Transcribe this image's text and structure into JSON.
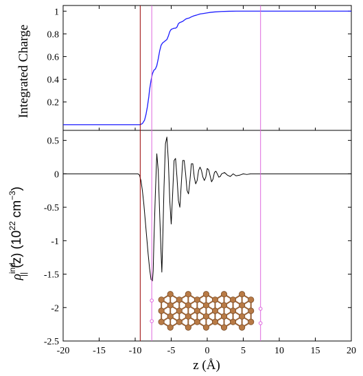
{
  "chart_data": [
    {
      "type": "line",
      "panel": "top",
      "ylabel": "Integrated Charge",
      "xlim": [
        -20,
        20
      ],
      "ylim": [
        -0.05,
        1.05
      ],
      "yticks": [
        0.2,
        0.4,
        0.6,
        0.8,
        1
      ],
      "ytick_labels": [
        "0.2",
        "0.4",
        "0.6",
        "0.8",
        "1"
      ],
      "series": [
        {
          "color": "#1a1aff",
          "x": [
            -20,
            -9.3,
            -9.0,
            -8.7,
            -8.5,
            -8.3,
            -8.1,
            -8.0,
            -7.8,
            -7.6,
            -7.4,
            -7.2,
            -7.0,
            -6.8,
            -6.6,
            -6.4,
            -6.2,
            -6.0,
            -5.8,
            -5.6,
            -5.4,
            -5.2,
            -5.0,
            -4.8,
            -4.6,
            -4.4,
            -4.2,
            -4.0,
            -3.8,
            -3.6,
            -3.4,
            -3.2,
            -3.0,
            -2.8,
            -2.5,
            -2.2,
            -1.8,
            -1.5,
            -1.0,
            -0.5,
            0,
            0.5,
            1.0,
            2.0,
            3.0,
            4.0,
            5.0,
            7.0,
            10.0,
            20.0
          ],
          "y": [
            0,
            0,
            0.01,
            0.04,
            0.09,
            0.16,
            0.25,
            0.31,
            0.39,
            0.45,
            0.48,
            0.49,
            0.52,
            0.58,
            0.65,
            0.7,
            0.72,
            0.73,
            0.74,
            0.75,
            0.78,
            0.82,
            0.84,
            0.845,
            0.85,
            0.85,
            0.86,
            0.89,
            0.9,
            0.905,
            0.91,
            0.92,
            0.93,
            0.935,
            0.94,
            0.95,
            0.96,
            0.965,
            0.975,
            0.98,
            0.985,
            0.99,
            0.993,
            0.997,
            0.999,
            1.0,
            1.0,
            1.0,
            1.0,
            1.0
          ]
        }
      ]
    },
    {
      "type": "line",
      "panel": "bottom",
      "xlabel": "z (Å)",
      "ylabel": "ρ||ind(z) (10²² cm⁻³)",
      "xlim": [
        -20,
        20
      ],
      "ylim": [
        -2.5,
        0.65
      ],
      "xticks": [
        -20,
        -15,
        -10,
        -5,
        0,
        5,
        10,
        15,
        20
      ],
      "xtick_labels": [
        "-20",
        "-15",
        "-10",
        "-5",
        "0",
        "5",
        "10",
        "15",
        "20"
      ],
      "yticks": [
        0.5,
        0,
        -0.5,
        -1,
        -1.5,
        -2,
        -2.5
      ],
      "ytick_labels": [
        "0.5",
        "0",
        "-0.5",
        "-1",
        "-1.5",
        "-2",
        "-2.5"
      ],
      "series": [
        {
          "color": "#000000",
          "x": [
            -20,
            -9.6,
            -9.4,
            -9.2,
            -9.0,
            -8.8,
            -8.6,
            -8.4,
            -8.2,
            -8.0,
            -7.8,
            -7.6,
            -7.5,
            -7.4,
            -7.2,
            -7.0,
            -6.8,
            -6.6,
            -6.4,
            -6.3,
            -6.2,
            -6.0,
            -5.8,
            -5.6,
            -5.4,
            -5.2,
            -5.0,
            -4.8,
            -4.6,
            -4.4,
            -4.2,
            -4.0,
            -3.8,
            -3.6,
            -3.4,
            -3.2,
            -3.0,
            -2.8,
            -2.6,
            -2.4,
            -2.2,
            -2.0,
            -1.8,
            -1.6,
            -1.4,
            -1.2,
            -1.0,
            -0.8,
            -0.6,
            -0.4,
            -0.2,
            0,
            0.2,
            0.4,
            0.6,
            0.8,
            1.0,
            1.2,
            1.4,
            1.6,
            1.8,
            2.0,
            2.4,
            2.8,
            3.2,
            3.6,
            4.0,
            4.5,
            5.0,
            5.5,
            6.0,
            7.0,
            20.0
          ],
          "y": [
            0,
            0,
            -0.02,
            -0.1,
            -0.25,
            -0.45,
            -0.7,
            -0.95,
            -1.2,
            -1.42,
            -1.58,
            -1.6,
            -1.45,
            -1.0,
            -0.3,
            0.3,
            0.05,
            -0.6,
            -1.2,
            -1.47,
            -1.1,
            -0.2,
            0.45,
            0.55,
            0.2,
            -0.4,
            -0.75,
            -0.3,
            0.2,
            0.23,
            -0.05,
            -0.4,
            -0.5,
            -0.15,
            0.2,
            0.2,
            0.0,
            -0.25,
            -0.3,
            -0.1,
            0.15,
            0.15,
            -0.05,
            -0.15,
            -0.1,
            0.05,
            0.1,
            0.05,
            -0.05,
            -0.1,
            -0.05,
            0.08,
            0.06,
            -0.03,
            -0.12,
            -0.08,
            0.02,
            0.04,
            0.0,
            -0.05,
            -0.04,
            0.0,
            0.02,
            -0.02,
            -0.04,
            0.0,
            -0.03,
            -0.02,
            0.0,
            -0.01,
            0.0,
            0.0,
            0.0
          ]
        }
      ]
    }
  ],
  "reference_lines": [
    {
      "x": -9.3,
      "color": "#990000"
    },
    {
      "x": -7.7,
      "color": "#dd66dd"
    },
    {
      "x": 7.4,
      "color": "#dd66dd"
    }
  ],
  "colors": {
    "atom": "#b87a45",
    "bond": "#9a6235",
    "ref_dark": "#990000",
    "ref_pink": "#dd66dd"
  },
  "structure_icon": "graphene-like-atomic-layer-inset"
}
